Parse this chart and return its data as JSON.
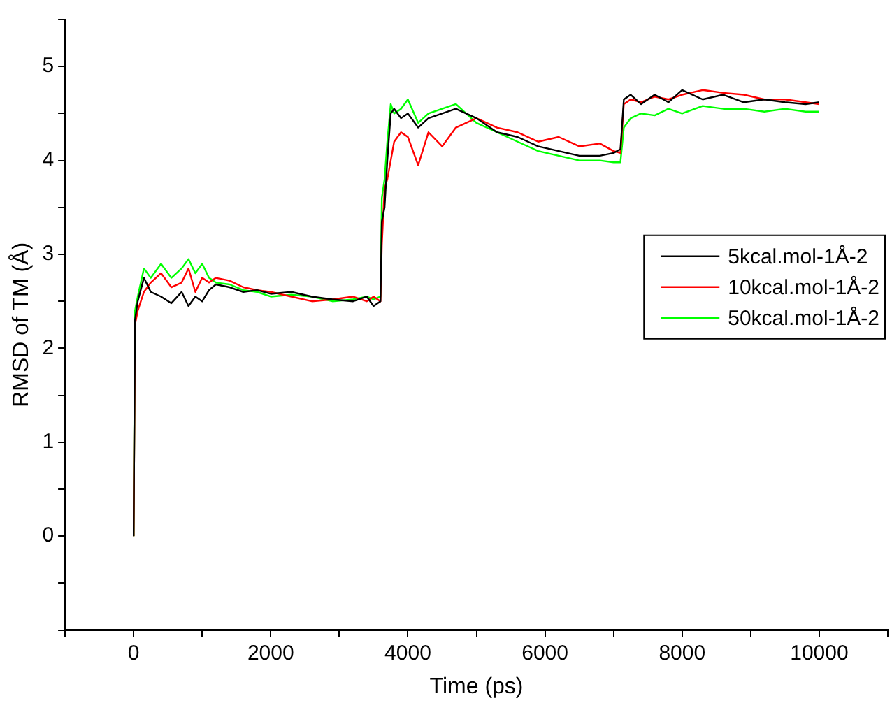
{
  "chart_data": {
    "type": "line",
    "xlabel": "Time (ps)",
    "ylabel": "RMSD of TM (Å)",
    "xlim": [
      -1000,
      11000
    ],
    "ylim": [
      -1,
      5.5
    ],
    "xticks": [
      {
        "value": -1000,
        "label": null
      },
      0,
      {
        "value": 1000,
        "label": null
      },
      2000,
      {
        "value": 3000,
        "label": null
      },
      4000,
      {
        "value": 5000,
        "label": null
      },
      6000,
      {
        "value": 7000,
        "label": null
      },
      8000,
      {
        "value": 9000,
        "label": null
      },
      10000,
      {
        "value": 11000,
        "label": null
      }
    ],
    "yticks": [
      {
        "value": -1,
        "label": null
      },
      {
        "value": -0.5,
        "label": null
      },
      0,
      {
        "value": 0.5,
        "label": null
      },
      1,
      {
        "value": 1.5,
        "label": null
      },
      2,
      {
        "value": 2.5,
        "label": null
      },
      3,
      {
        "value": 3.5,
        "label": null
      },
      4,
      {
        "value": 4.5,
        "label": null
      },
      5,
      {
        "value": 5.5,
        "label": null
      }
    ],
    "grid": false,
    "legend": "right",
    "marker": "none",
    "line_style": "solid",
    "x": [
      0,
      20,
      60,
      150,
      250,
      400,
      550,
      700,
      800,
      900,
      1000,
      1100,
      1200,
      1400,
      1600,
      1800,
      2000,
      2300,
      2600,
      2900,
      3200,
      3400,
      3500,
      3600,
      3620,
      3660,
      3700,
      3750,
      3800,
      3900,
      4000,
      4150,
      4300,
      4500,
      4700,
      4850,
      5000,
      5300,
      5600,
      5900,
      6200,
      6500,
      6800,
      7000,
      7100,
      7150,
      7250,
      7400,
      7600,
      7800,
      8000,
      8300,
      8600,
      8900,
      9200,
      9500,
      9800,
      10000
    ],
    "series": [
      {
        "name": "5kcal.mol-1Å-2",
        "color": "#000000",
        "values": [
          0,
          2.3,
          2.5,
          2.75,
          2.6,
          2.55,
          2.48,
          2.6,
          2.45,
          2.55,
          2.5,
          2.62,
          2.68,
          2.65,
          2.6,
          2.62,
          2.58,
          2.6,
          2.55,
          2.52,
          2.5,
          2.55,
          2.45,
          2.5,
          3.35,
          3.5,
          4.0,
          4.5,
          4.55,
          4.45,
          4.5,
          4.35,
          4.45,
          4.5,
          4.55,
          4.5,
          4.45,
          4.3,
          4.25,
          4.15,
          4.1,
          4.05,
          4.05,
          4.08,
          4.12,
          4.65,
          4.7,
          4.6,
          4.7,
          4.62,
          4.75,
          4.65,
          4.7,
          4.62,
          4.65,
          4.62,
          4.6,
          4.62
        ]
      },
      {
        "name": "10kcal.mol-1Å-2",
        "color": "#ff0000",
        "values": [
          0,
          2.25,
          2.4,
          2.6,
          2.7,
          2.8,
          2.65,
          2.7,
          2.85,
          2.6,
          2.75,
          2.7,
          2.75,
          2.72,
          2.65,
          2.62,
          2.6,
          2.55,
          2.5,
          2.52,
          2.55,
          2.5,
          2.55,
          2.5,
          3.1,
          3.7,
          3.8,
          4.0,
          4.2,
          4.3,
          4.25,
          3.95,
          4.3,
          4.15,
          4.35,
          4.4,
          4.45,
          4.35,
          4.3,
          4.2,
          4.25,
          4.15,
          4.18,
          4.1,
          4.08,
          4.6,
          4.65,
          4.62,
          4.68,
          4.65,
          4.7,
          4.75,
          4.72,
          4.7,
          4.65,
          4.65,
          4.62,
          4.6
        ]
      },
      {
        "name": "50kcal.mol-1Å-2",
        "color": "#00ff00",
        "values": [
          0,
          2.4,
          2.55,
          2.85,
          2.75,
          2.9,
          2.75,
          2.85,
          2.95,
          2.8,
          2.9,
          2.75,
          2.7,
          2.68,
          2.62,
          2.6,
          2.55,
          2.57,
          2.55,
          2.5,
          2.52,
          2.55,
          2.52,
          2.55,
          3.6,
          3.8,
          4.2,
          4.6,
          4.5,
          4.55,
          4.65,
          4.4,
          4.5,
          4.55,
          4.6,
          4.5,
          4.4,
          4.3,
          4.2,
          4.1,
          4.05,
          4.0,
          4.0,
          3.98,
          3.98,
          4.35,
          4.45,
          4.5,
          4.48,
          4.55,
          4.5,
          4.58,
          4.55,
          4.55,
          4.52,
          4.55,
          4.52,
          4.52
        ]
      }
    ]
  }
}
